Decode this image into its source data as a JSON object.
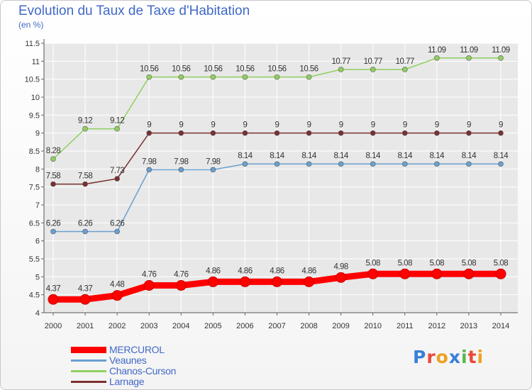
{
  "title": "Evolution du Taux de Taxe d'Habitation",
  "subtitle": "(en %)",
  "logo": {
    "letters": [
      "P",
      "r",
      "o",
      "x",
      "i",
      "t",
      "i"
    ],
    "colors": [
      "#3a7fd8",
      "#e84a3a",
      "#f0a020",
      "#3a7fd8",
      "#58b848",
      "#e84a3a",
      "#f0a020"
    ]
  },
  "chart_data": {
    "type": "line",
    "x": [
      2000,
      2001,
      2002,
      2003,
      2004,
      2005,
      2006,
      2007,
      2008,
      2009,
      2010,
      2011,
      2012,
      2013,
      2014
    ],
    "ylim": [
      4,
      11.5
    ],
    "yticks": [
      4,
      4.5,
      5,
      5.5,
      6,
      6.5,
      7,
      7.5,
      8,
      8.5,
      9,
      9.5,
      10,
      10.5,
      11,
      11.5
    ],
    "ytick_labels": [
      "4",
      "4.5",
      "5",
      "5.5",
      "6",
      "6.5",
      "7",
      "7.5",
      "8",
      "8.5",
      "9",
      "9.5",
      "10",
      "10.5",
      "11",
      "11.5"
    ],
    "grid": true,
    "legend_position": "bottom-left",
    "series": [
      {
        "name": "MERCUROL",
        "color": "#ff0000",
        "emphasis": true,
        "values": [
          4.37,
          4.37,
          4.48,
          4.76,
          4.76,
          4.86,
          4.86,
          4.86,
          4.86,
          4.98,
          5.08,
          5.08,
          5.08,
          5.08,
          5.08
        ],
        "labels": [
          "4.37",
          "4.37",
          "4.48",
          "4.76",
          "4.76",
          "4.86",
          "4.86",
          "4.86",
          "4.86",
          "4.98",
          "5.08",
          "5.08",
          "5.08",
          "5.08",
          "5.08"
        ]
      },
      {
        "name": "Veaunes",
        "color": "#6b9fd0",
        "values": [
          6.26,
          6.26,
          6.26,
          7.98,
          7.98,
          7.98,
          8.14,
          8.14,
          8.14,
          8.14,
          8.14,
          8.14,
          8.14,
          8.14,
          8.14
        ],
        "labels": [
          "6.26",
          "6.26",
          "6.26",
          "7.98",
          "7.98",
          "7.98",
          "8.14",
          "8.14",
          "8.14",
          "8.14",
          "8.14",
          "8.14",
          "8.14",
          "8.14",
          "8.14"
        ]
      },
      {
        "name": "Chanos-Curson",
        "color": "#90d060",
        "values": [
          8.28,
          9.12,
          9.12,
          10.56,
          10.56,
          10.56,
          10.56,
          10.56,
          10.56,
          10.77,
          10.77,
          10.77,
          11.09,
          11.09,
          11.09
        ],
        "labels": [
          "8.28",
          "9.12",
          "9.12",
          "10.56",
          "10.56",
          "10.56",
          "10.56",
          "10.56",
          "10.56",
          "10.77",
          "10.77",
          "10.77",
          "11.09",
          "11.09",
          "11.09"
        ]
      },
      {
        "name": "Larnage",
        "color": "#7a3030",
        "values": [
          7.58,
          7.58,
          7.73,
          9,
          9,
          9,
          9,
          9,
          9,
          9,
          9,
          9,
          9,
          9,
          9
        ],
        "labels": [
          "7.58",
          "7.58",
          "7.73",
          "9",
          "9",
          "9",
          "9",
          "9",
          "9",
          "9",
          "9",
          "9",
          "9",
          "9",
          "9"
        ]
      }
    ]
  }
}
